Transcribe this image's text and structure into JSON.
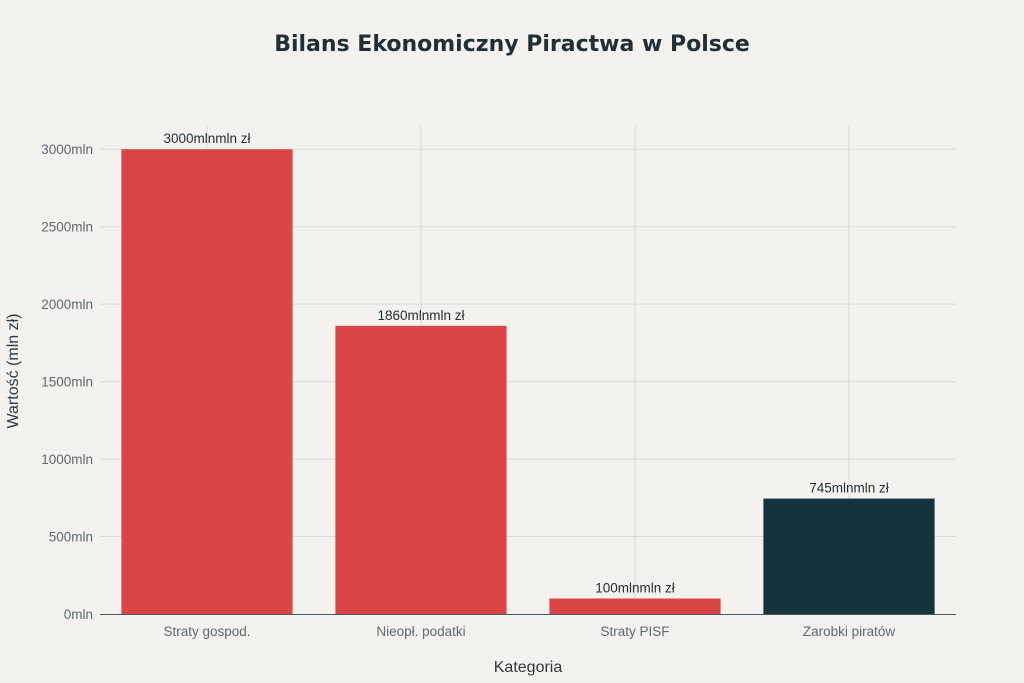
{
  "chart_data": {
    "type": "bar",
    "title": "Bilans Ekonomiczny Piractwa w Polsce",
    "xlabel": "Kategoria",
    "ylabel": "Wartość (mln zł)",
    "categories": [
      "Straty gospod.",
      "Nieopł. podatki",
      "Straty PISF",
      "Zarobki piratów"
    ],
    "values": [
      3000,
      1860,
      100,
      745
    ],
    "data_labels": [
      "3000mlnmln zł",
      "1860mlnmln zł",
      "100mlnmln zł",
      "745mlnmln zł"
    ],
    "bar_colors": [
      "#db4545",
      "#db4545",
      "#db4545",
      "#13343b"
    ],
    "ylim": [
      0,
      3150
    ],
    "yticks": [
      0,
      500,
      1000,
      1500,
      2000,
      2500,
      3000
    ],
    "ytick_labels": [
      "0mln",
      "500mln",
      "1000mln",
      "1500mln",
      "2000mln",
      "2500mln",
      "3000mln"
    ],
    "grid": true,
    "legend": "none"
  }
}
